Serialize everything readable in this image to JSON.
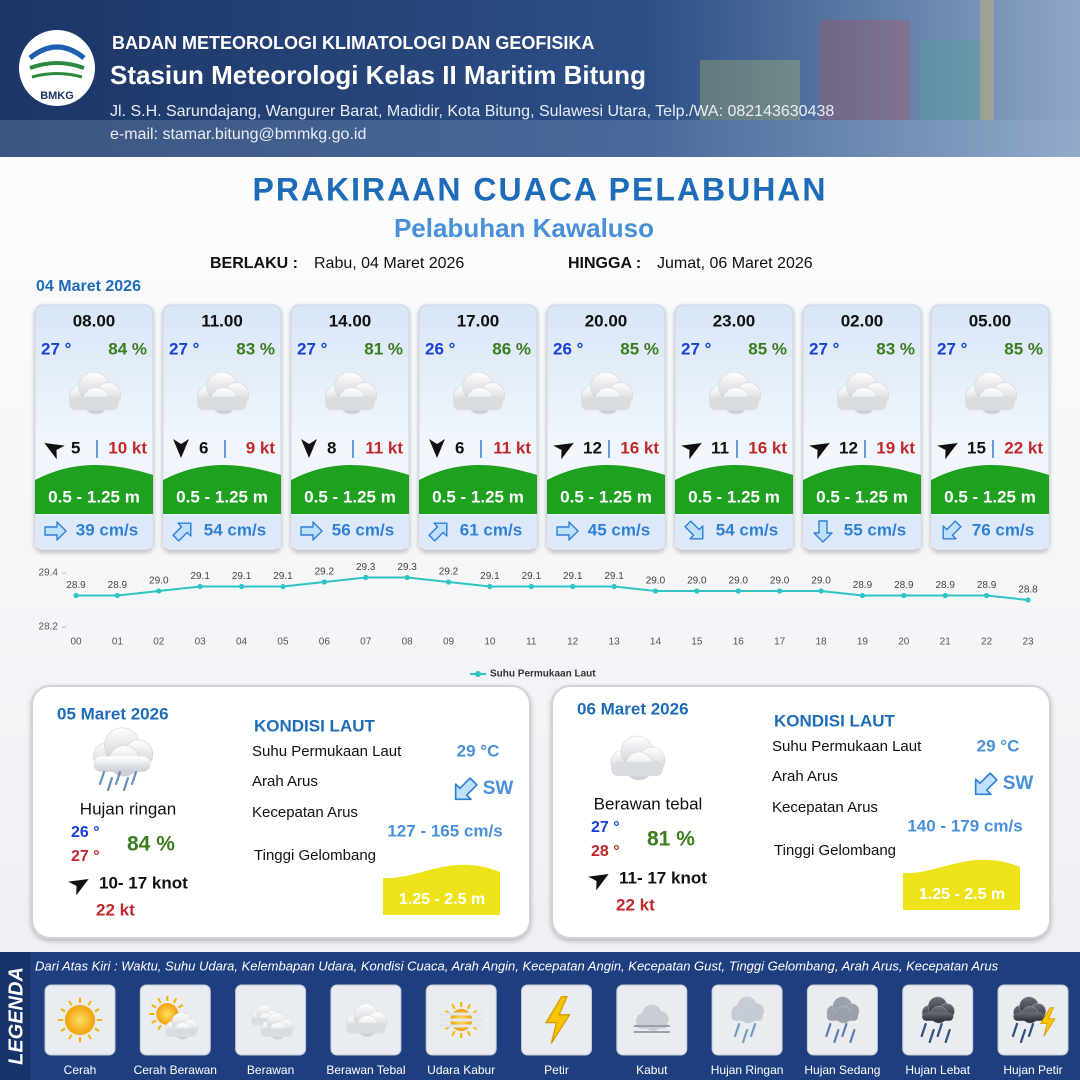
{
  "header": {
    "logo_text": "BMKG",
    "agency": "BADAN METEOROLOGI KLIMATOLOGI DAN GEOFISIKA",
    "station": "Stasiun Meteorologi Kelas II Maritim Bitung",
    "address": "Jl. S.H. Sarundajang, Wangurer Barat, Madidir, Kota Bitung, Sulawesi Utara, Telp./WA: 082143630438",
    "email": "e-mail: stamar.bitung@bmmkg.go.id"
  },
  "title": "PRAKIRAAN CUACA PELABUHAN",
  "subtitle": "Pelabuhan Kawaluso",
  "validity": {
    "from_label": "BERLAKU :",
    "from": "Rabu, 04 Maret 2026",
    "to_label": "HINGGA :",
    "to": "Jumat, 06 Maret 2026"
  },
  "day1_date": "04 Maret 2026",
  "forecasts": [
    {
      "time": "08.00",
      "temp": "27 °",
      "humidity": "84 %",
      "wind": "5",
      "gust": "10 kt",
      "wave": "0.5 - 1.25 m",
      "current": "39 cm/s"
    },
    {
      "time": "11.00",
      "temp": "27 °",
      "humidity": "83 %",
      "wind": "6",
      "gust": "9 kt",
      "wave": "0.5 - 1.25 m",
      "current": "54 cm/s"
    },
    {
      "time": "14.00",
      "temp": "27 °",
      "humidity": "81 %",
      "wind": "8",
      "gust": "11 kt",
      "wave": "0.5 - 1.25 m",
      "current": "56 cm/s"
    },
    {
      "time": "17.00",
      "temp": "26 °",
      "humidity": "86 %",
      "wind": "6",
      "gust": "11 kt",
      "wave": "0.5 - 1.25 m",
      "current": "61 cm/s"
    },
    {
      "time": "20.00",
      "temp": "26 °",
      "humidity": "85 %",
      "wind": "12",
      "gust": "16 kt",
      "wave": "0.5 - 1.25 m",
      "current": "45 cm/s"
    },
    {
      "time": "23.00",
      "temp": "27 °",
      "humidity": "85 %",
      "wind": "11",
      "gust": "16 kt",
      "wave": "0.5 - 1.25 m",
      "current": "54 cm/s"
    },
    {
      "time": "02.00",
      "temp": "27 °",
      "humidity": "83 %",
      "wind": "12",
      "gust": "19 kt",
      "wave": "0.5 - 1.25 m",
      "current": "55 cm/s"
    },
    {
      "time": "05.00",
      "temp": "27 °",
      "humidity": "85 %",
      "wind": "15",
      "gust": "22 kt",
      "wave": "0.5 - 1.25 m",
      "current": "76 cm/s"
    }
  ],
  "chart_data": {
    "type": "line",
    "categories": [
      "00",
      "01",
      "02",
      "03",
      "04",
      "05",
      "06",
      "07",
      "08",
      "09",
      "10",
      "11",
      "12",
      "13",
      "14",
      "15",
      "16",
      "17",
      "18",
      "19",
      "20",
      "21",
      "22",
      "23"
    ],
    "series": [
      {
        "name": "Suhu Permukaan Laut",
        "color": "#2ec4c4",
        "values": [
          28.9,
          28.9,
          29.0,
          29.1,
          29.1,
          29.1,
          29.2,
          29.3,
          29.3,
          29.2,
          29.1,
          29.1,
          29.1,
          29.1,
          29.0,
          29.0,
          29.0,
          29.0,
          29.0,
          28.9,
          28.9,
          28.9,
          28.9,
          28.8
        ],
        "value_labels": [
          "28.9",
          "28.9",
          "29.0",
          "29.1",
          "29.1",
          "29.1",
          "29.2",
          "29.3",
          "29.3",
          "29.2",
          "29.1",
          "29.1",
          "29.1",
          "29.1",
          "29.0",
          "29.0",
          "29.0",
          "29.0",
          "29.0",
          "28.9",
          "28.9",
          "28.9",
          "28.9",
          "28.8"
        ]
      }
    ],
    "ylim": [
      28.2,
      29.4
    ],
    "yticks": [
      28.2,
      29.4
    ],
    "legend": "bottom"
  },
  "days": [
    {
      "date": "05 Maret 2026",
      "weather": "Hujan ringan",
      "temp_min": "26 °",
      "temp_max": "27 °",
      "humidity": "84 %",
      "wind": "10- 17 knot",
      "gust": "22 kt",
      "sea_heading": "KONDISI LAUT",
      "sst_label": "Suhu Permukaan Laut",
      "sst": "29 °C",
      "current_dir_label": "Arah Arus",
      "current_dir": "SW",
      "current_speed_label": "Kecepatan Arus",
      "current_speed": "127 - 165 cm/s",
      "wave_label": "Tinggi Gelombang",
      "wave": "1.25 - 2.5 m"
    },
    {
      "date": "06 Maret 2026",
      "weather": "Berawan tebal",
      "temp_min": "27 °",
      "temp_max": "28 °",
      "humidity": "81 %",
      "wind": "11- 17 knot",
      "gust": "22 kt",
      "sea_heading": "KONDISI LAUT",
      "sst_label": "Suhu Permukaan Laut",
      "sst": "29 °C",
      "current_dir_label": "Arah Arus",
      "current_dir": "SW",
      "current_speed_label": "Kecepatan Arus",
      "current_speed": "140 - 179 cm/s",
      "wave_label": "Tinggi Gelombang",
      "wave": "1.25 - 2.5 m"
    }
  ],
  "legend": {
    "label": "LEGENDA",
    "note": "Dari Atas Kiri : Waktu, Suhu Udara, Kelembapan Udara, Kondisi Cuaca, Arah Angin, Kecepatan Angin, Kecepatan Gust, Tinggi Gelombang, Arah Arus, Kecepatan Arus",
    "items": [
      "Cerah",
      "Cerah Berawan",
      "Berawan",
      "Berawan Tebal",
      "Udara Kabur",
      "Petir",
      "Kabut",
      "Hujan Ringan",
      "Hujan Sedang",
      "Hujan Lebat",
      "Hujan Petir"
    ]
  }
}
